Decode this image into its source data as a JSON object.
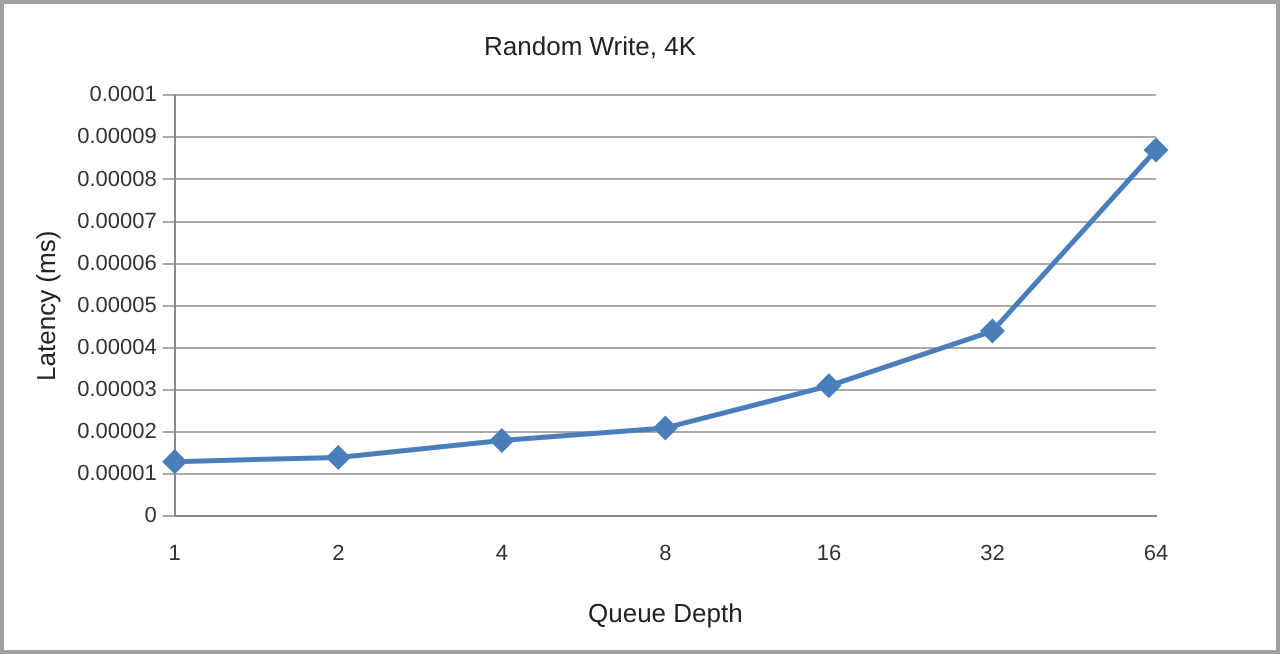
{
  "chart_data": {
    "type": "line",
    "title": "Random Write, 4K",
    "xlabel": "Queue Depth",
    "ylabel": "Latency (ms)",
    "categories": [
      "1",
      "2",
      "4",
      "8",
      "16",
      "32",
      "64"
    ],
    "series": [
      {
        "color": "#4a7ebb",
        "values": [
          1.3e-05,
          1.4e-05,
          1.8e-05,
          2.1e-05,
          3.1e-05,
          4.4e-05,
          8.7e-05
        ]
      }
    ],
    "ylim": [
      0,
      0.0001
    ],
    "yticks": [
      0,
      {
        "value": 1e-05,
        "label": "0.00001"
      },
      {
        "value": 2e-05,
        "label": "0.00002"
      },
      {
        "value": 3e-05,
        "label": "0.00003"
      },
      {
        "value": 4e-05,
        "label": "0.00004"
      },
      {
        "value": 5e-05,
        "label": "0.00005"
      },
      {
        "value": 6e-05,
        "label": "0.00006"
      },
      {
        "value": 7e-05,
        "label": "0.00007"
      },
      {
        "value": 8e-05,
        "label": "0.00008"
      },
      {
        "value": 9e-05,
        "label": "0.00009"
      },
      0.0001
    ],
    "grid": "y",
    "legend": false,
    "marker": "diamond",
    "line_style": "solid"
  }
}
